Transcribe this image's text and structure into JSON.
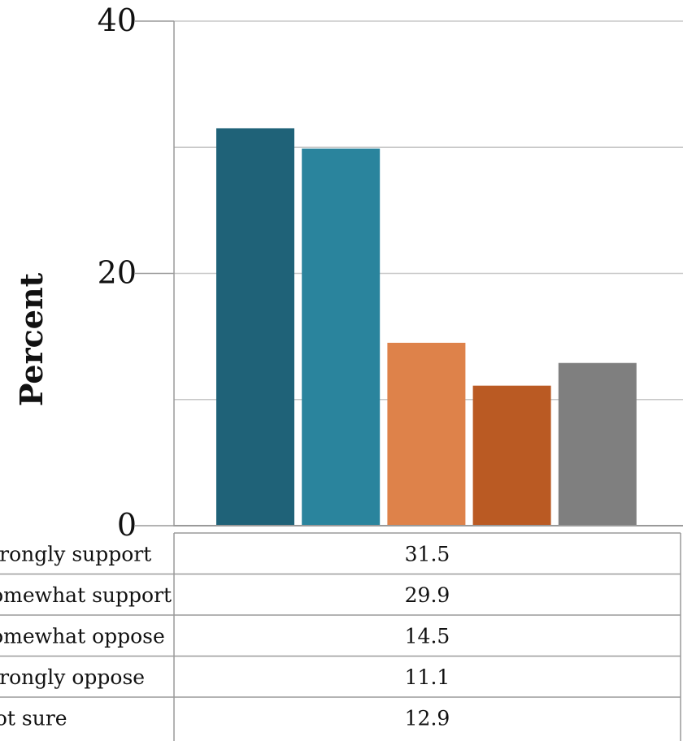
{
  "chart_data": {
    "type": "bar",
    "categories": [
      "Strongly support",
      "Somewhat support",
      "Somewhat oppose",
      "Strongly oppose",
      "Not sure"
    ],
    "values": [
      31.5,
      29.9,
      14.5,
      11.1,
      12.9
    ],
    "value_labels": [
      "31.5",
      "29.9",
      "14.5",
      "11.1",
      "12.9"
    ],
    "ylabel": "Percent",
    "ylim": [
      0,
      40
    ],
    "yticks": [
      0,
      20,
      40
    ],
    "ytick_labels": [
      "0",
      "20",
      "40"
    ],
    "minor_gridlines": [
      10,
      30
    ],
    "grid": true,
    "legend": "data table below chart",
    "colors": [
      "#1f6278",
      "#2a849d",
      "#de824a",
      "#ba5a23",
      "#7f7f7f"
    ]
  }
}
